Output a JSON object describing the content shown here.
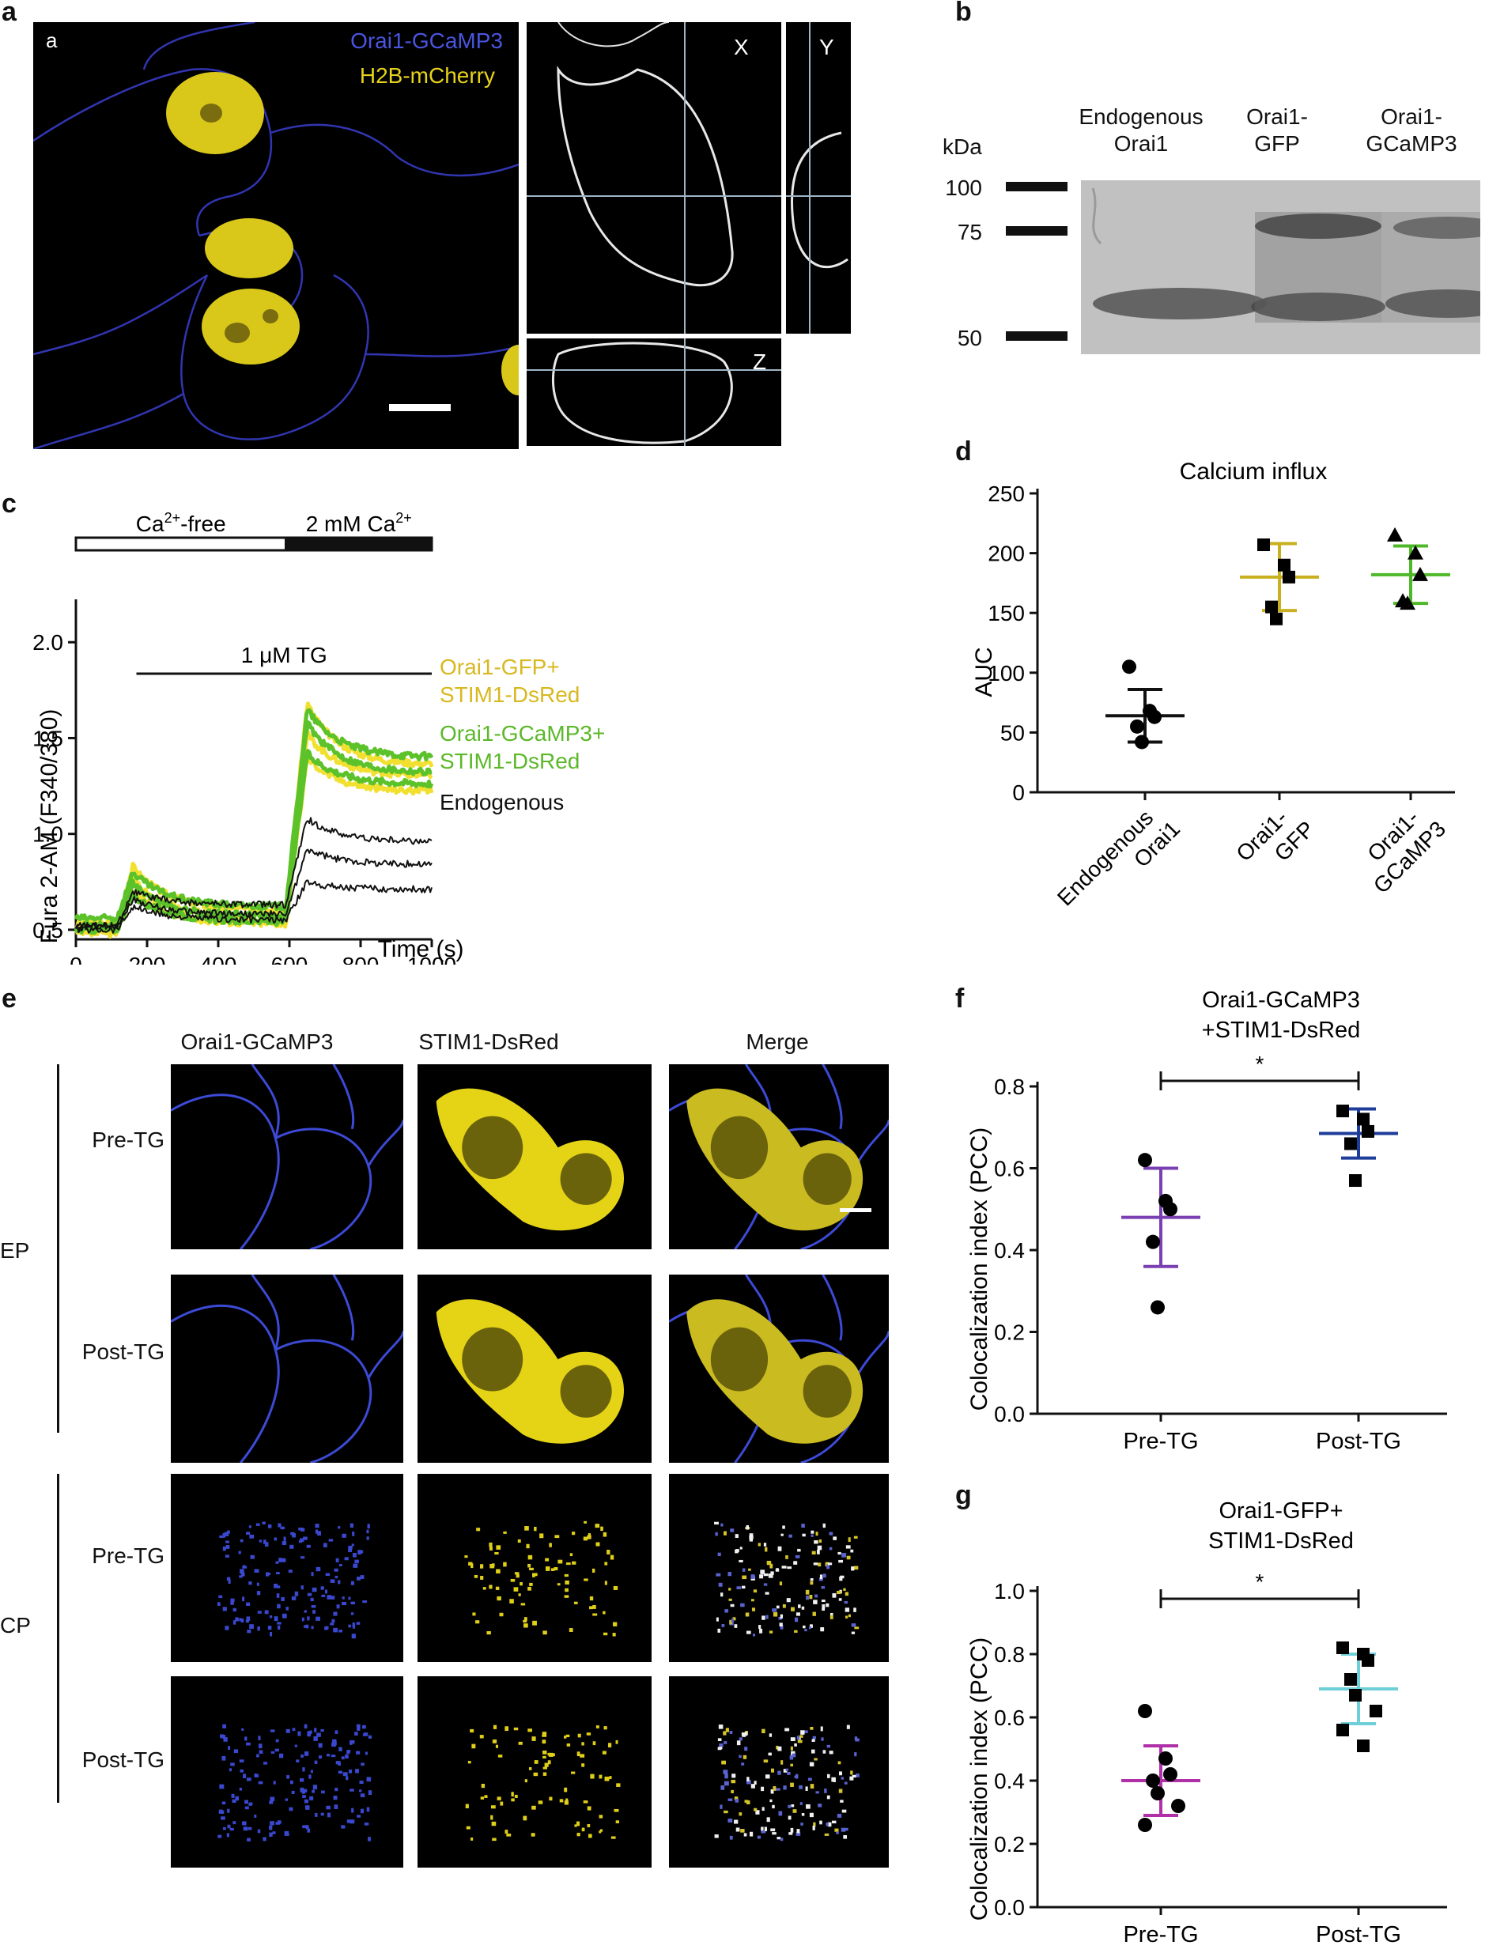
{
  "panel_letters": {
    "a": "a",
    "b": "b",
    "c": "c",
    "d": "d",
    "e": "e",
    "f": "f",
    "g": "g"
  },
  "panel_a": {
    "corner_label": "a",
    "legend_line1": "Orai1-GCaMP3",
    "legend_line2": "H2B-mCherry",
    "ortho_x": "X",
    "ortho_y": "Y",
    "ortho_z": "Z",
    "colors": {
      "orai": "#3a3fd0",
      "h2b": "#e6d21a"
    }
  },
  "panel_b": {
    "kda": "kDa",
    "markers": [
      "100",
      "75",
      "50"
    ],
    "lanes": [
      {
        "line1": "Endogenous",
        "line2": "Orai1"
      },
      {
        "line1": "Orai1-",
        "line2": "GFP"
      },
      {
        "line1": "Orai1-",
        "line2": "GCaMP3"
      }
    ]
  },
  "panel_e": {
    "columns": [
      "Orai1-GCaMP3",
      "STIM1-DsRed",
      "Merge"
    ],
    "rows": [
      "Pre-TG",
      "Post-TG",
      "Pre-TG",
      "Post-TG"
    ],
    "groups": [
      "EP",
      "CP"
    ]
  },
  "chart_data": [
    {
      "panel": "c",
      "type": "line",
      "title": "",
      "xlabel": "Time (s)",
      "ylabel": "Fura 2-AM (F340/380)",
      "xlim": [
        0,
        1000
      ],
      "ylim": [
        0.45,
        2.1
      ],
      "xticks": [
        "0",
        "200",
        "400",
        "600",
        "800",
        "1000"
      ],
      "yticks": [
        "0.5",
        "1.0",
        "1.5",
        "2.0"
      ],
      "condition_bars": {
        "ca_free": "Ca2+-free",
        "ca_2mm": "2 mM Ca2+",
        "tg": "1 μM TG"
      },
      "ca_free_label_parts": [
        "Ca",
        "2+",
        "-free"
      ],
      "ca_2mm_label_parts": [
        "2 mM Ca",
        "2+"
      ],
      "tg_label_parts": [
        "1 ",
        "μ",
        "M TG"
      ],
      "ca_switch_time": 590,
      "tg_start_time": 170,
      "legend": [
        {
          "text": "Orai1-GFP+",
          "color": "#d8b820"
        },
        {
          "text": "STIM1-DsRed",
          "color": "#d8b820"
        },
        {
          "text": "Orai1-GCaMP3+",
          "color": "#5cb82a"
        },
        {
          "text": "STIM1-DsRed",
          "color": "#5cb82a"
        },
        {
          "text": "Endogenous",
          "color": "#111111"
        }
      ],
      "series": [
        {
          "name": "Orai1-GFP+ STIM1-DsRed",
          "color": "#f2e030",
          "baseline": 0.53,
          "ca_free_peak": 0.83,
          "ca_free_late": 0.6,
          "peak": 1.68,
          "plateau": 1.36
        },
        {
          "name": "Orai1-GFP+ STIM1-DsRed",
          "color": "#f2e030",
          "baseline": 0.5,
          "ca_free_peak": 0.76,
          "ca_free_late": 0.56,
          "peak": 1.52,
          "plateau": 1.3
        },
        {
          "name": "Orai1-GFP+ STIM1-DsRed",
          "color": "#f2e030",
          "baseline": 0.48,
          "ca_free_peak": 0.7,
          "ca_free_late": 0.53,
          "peak": 1.4,
          "plateau": 1.22
        },
        {
          "name": "Orai1-GCaMP3+ STIM1-DsRed",
          "color": "#5cc22a",
          "baseline": 0.56,
          "ca_free_peak": 0.8,
          "ca_free_late": 0.62,
          "peak": 1.65,
          "plateau": 1.4
        },
        {
          "name": "Orai1-GCaMP3+ STIM1-DsRed",
          "color": "#5cc22a",
          "baseline": 0.52,
          "ca_free_peak": 0.74,
          "ca_free_late": 0.57,
          "peak": 1.58,
          "plateau": 1.32
        },
        {
          "name": "Orai1-GCaMP3+ STIM1-DsRed",
          "color": "#5cc22a",
          "baseline": 0.5,
          "ca_free_peak": 0.68,
          "ca_free_late": 0.54,
          "peak": 1.42,
          "plateau": 1.26
        },
        {
          "name": "Endogenous",
          "color": "#111111",
          "baseline": 0.52,
          "ca_free_peak": 0.7,
          "ca_free_late": 0.63,
          "peak": 1.08,
          "plateau": 0.96
        },
        {
          "name": "Endogenous",
          "color": "#111111",
          "baseline": 0.52,
          "ca_free_peak": 0.66,
          "ca_free_late": 0.58,
          "peak": 0.92,
          "plateau": 0.84
        },
        {
          "name": "Endogenous",
          "color": "#111111",
          "baseline": 0.5,
          "ca_free_peak": 0.62,
          "ca_free_late": 0.55,
          "peak": 0.75,
          "plateau": 0.71
        }
      ]
    },
    {
      "panel": "d",
      "type": "scatter",
      "title": "Calcium influx",
      "ylabel": "AUC",
      "xlabel": "",
      "ylim": [
        0,
        250
      ],
      "yticks": [
        "0",
        "50",
        "100",
        "150",
        "200",
        "250"
      ],
      "categories": [
        [
          "Endogenous",
          "Orai1"
        ],
        [
          "Orai1-",
          "GFP"
        ],
        [
          "Orai1-",
          "GCaMP3"
        ]
      ],
      "groups": [
        {
          "category": "Endogenous Orai1",
          "color": "#111111",
          "marker": "circle",
          "mean": 64,
          "sd_low": 42,
          "sd_high": 86,
          "points": [
            105,
            68,
            63,
            55,
            42
          ]
        },
        {
          "category": "Orai1- GFP",
          "color": "#c9b020",
          "marker": "square",
          "mean": 180,
          "sd_low": 152,
          "sd_high": 208,
          "points": [
            207,
            190,
            180,
            155,
            145
          ]
        },
        {
          "category": "Orai1- GCaMP3",
          "color": "#4fb828",
          "marker": "triangle",
          "mean": 182,
          "sd_low": 158,
          "sd_high": 206,
          "points": [
            215,
            200,
            182,
            160,
            158
          ]
        }
      ]
    },
    {
      "panel": "f",
      "type": "scatter",
      "title": "Orai1-GCaMP3\n+STIM1-DsRed",
      "title_lines": [
        "Orai1-GCaMP3",
        "+STIM1-DsRed"
      ],
      "ylabel": "Colocalization index (PCC)",
      "xlabel": "",
      "ylim": [
        0.0,
        0.8
      ],
      "yticks": [
        "0.0",
        "0.2",
        "0.4",
        "0.6",
        "0.8"
      ],
      "categories": [
        "Pre-TG",
        "Post-TG"
      ],
      "significance": "*",
      "groups": [
        {
          "category": "Pre-TG",
          "color": "#7a3fb0",
          "marker": "circle",
          "mean": 0.48,
          "sd_low": 0.36,
          "sd_high": 0.6,
          "points": [
            0.62,
            0.52,
            0.5,
            0.42,
            0.26
          ]
        },
        {
          "category": "Post-TG",
          "color": "#1e3c9a",
          "marker": "square",
          "mean": 0.685,
          "sd_low": 0.625,
          "sd_high": 0.745,
          "points": [
            0.74,
            0.72,
            0.69,
            0.66,
            0.57
          ]
        }
      ]
    },
    {
      "panel": "g",
      "type": "scatter",
      "title": "Orai1-GFP+\nSTIM1-DsRed",
      "title_lines": [
        "Orai1-GFP+",
        "STIM1-DsRed"
      ],
      "ylabel": "Colocalization index (PCC)",
      "xlabel": "",
      "ylim": [
        0.0,
        1.0
      ],
      "yticks": [
        "0.0",
        "0.2",
        "0.4",
        "0.6",
        "0.8",
        "1.0"
      ],
      "categories": [
        "Pre-TG",
        "Post-TG"
      ],
      "significance": "*",
      "groups": [
        {
          "category": "Pre-TG",
          "color": "#b030a8",
          "marker": "circle",
          "mean": 0.4,
          "sd_low": 0.29,
          "sd_high": 0.51,
          "points": [
            0.62,
            0.47,
            0.42,
            0.4,
            0.36,
            0.32,
            0.26
          ]
        },
        {
          "category": "Post-TG",
          "color": "#6fcfd8",
          "marker": "square",
          "mean": 0.69,
          "sd_low": 0.58,
          "sd_high": 0.8,
          "points": [
            0.82,
            0.8,
            0.78,
            0.72,
            0.67,
            0.62,
            0.56,
            0.51
          ]
        }
      ]
    }
  ]
}
